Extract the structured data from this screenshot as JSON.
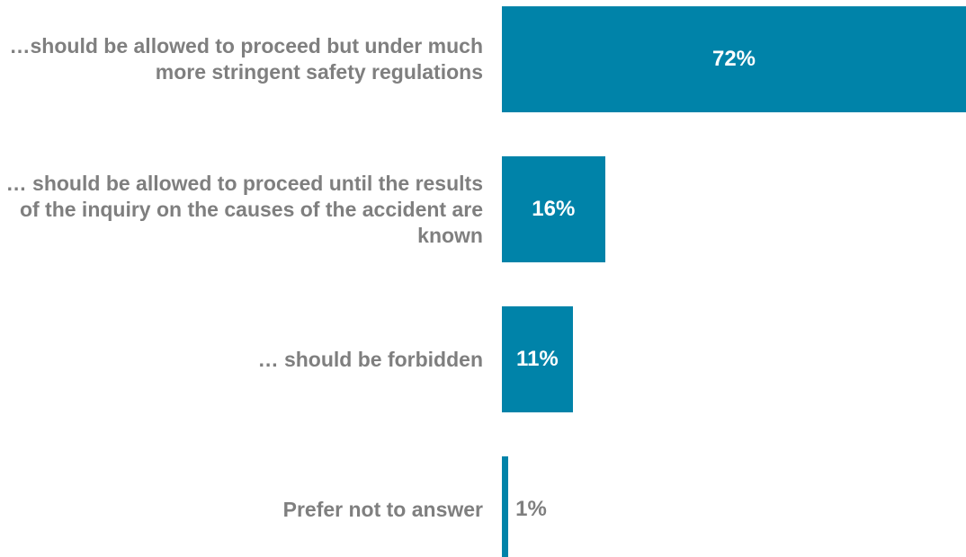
{
  "chart_data": {
    "type": "barh",
    "categories": [
      "…should be allowed to proceed but under much more stringent safety regulations",
      "… should be allowed to proceed until the results of the inquiry on the causes of the accident are known",
      "… should be forbidden",
      "Prefer not to answer"
    ],
    "values": [
      72,
      16,
      11,
      1
    ],
    "value_labels": [
      "72%",
      "16%",
      "11%",
      "1%"
    ],
    "color": "#0083a9"
  }
}
